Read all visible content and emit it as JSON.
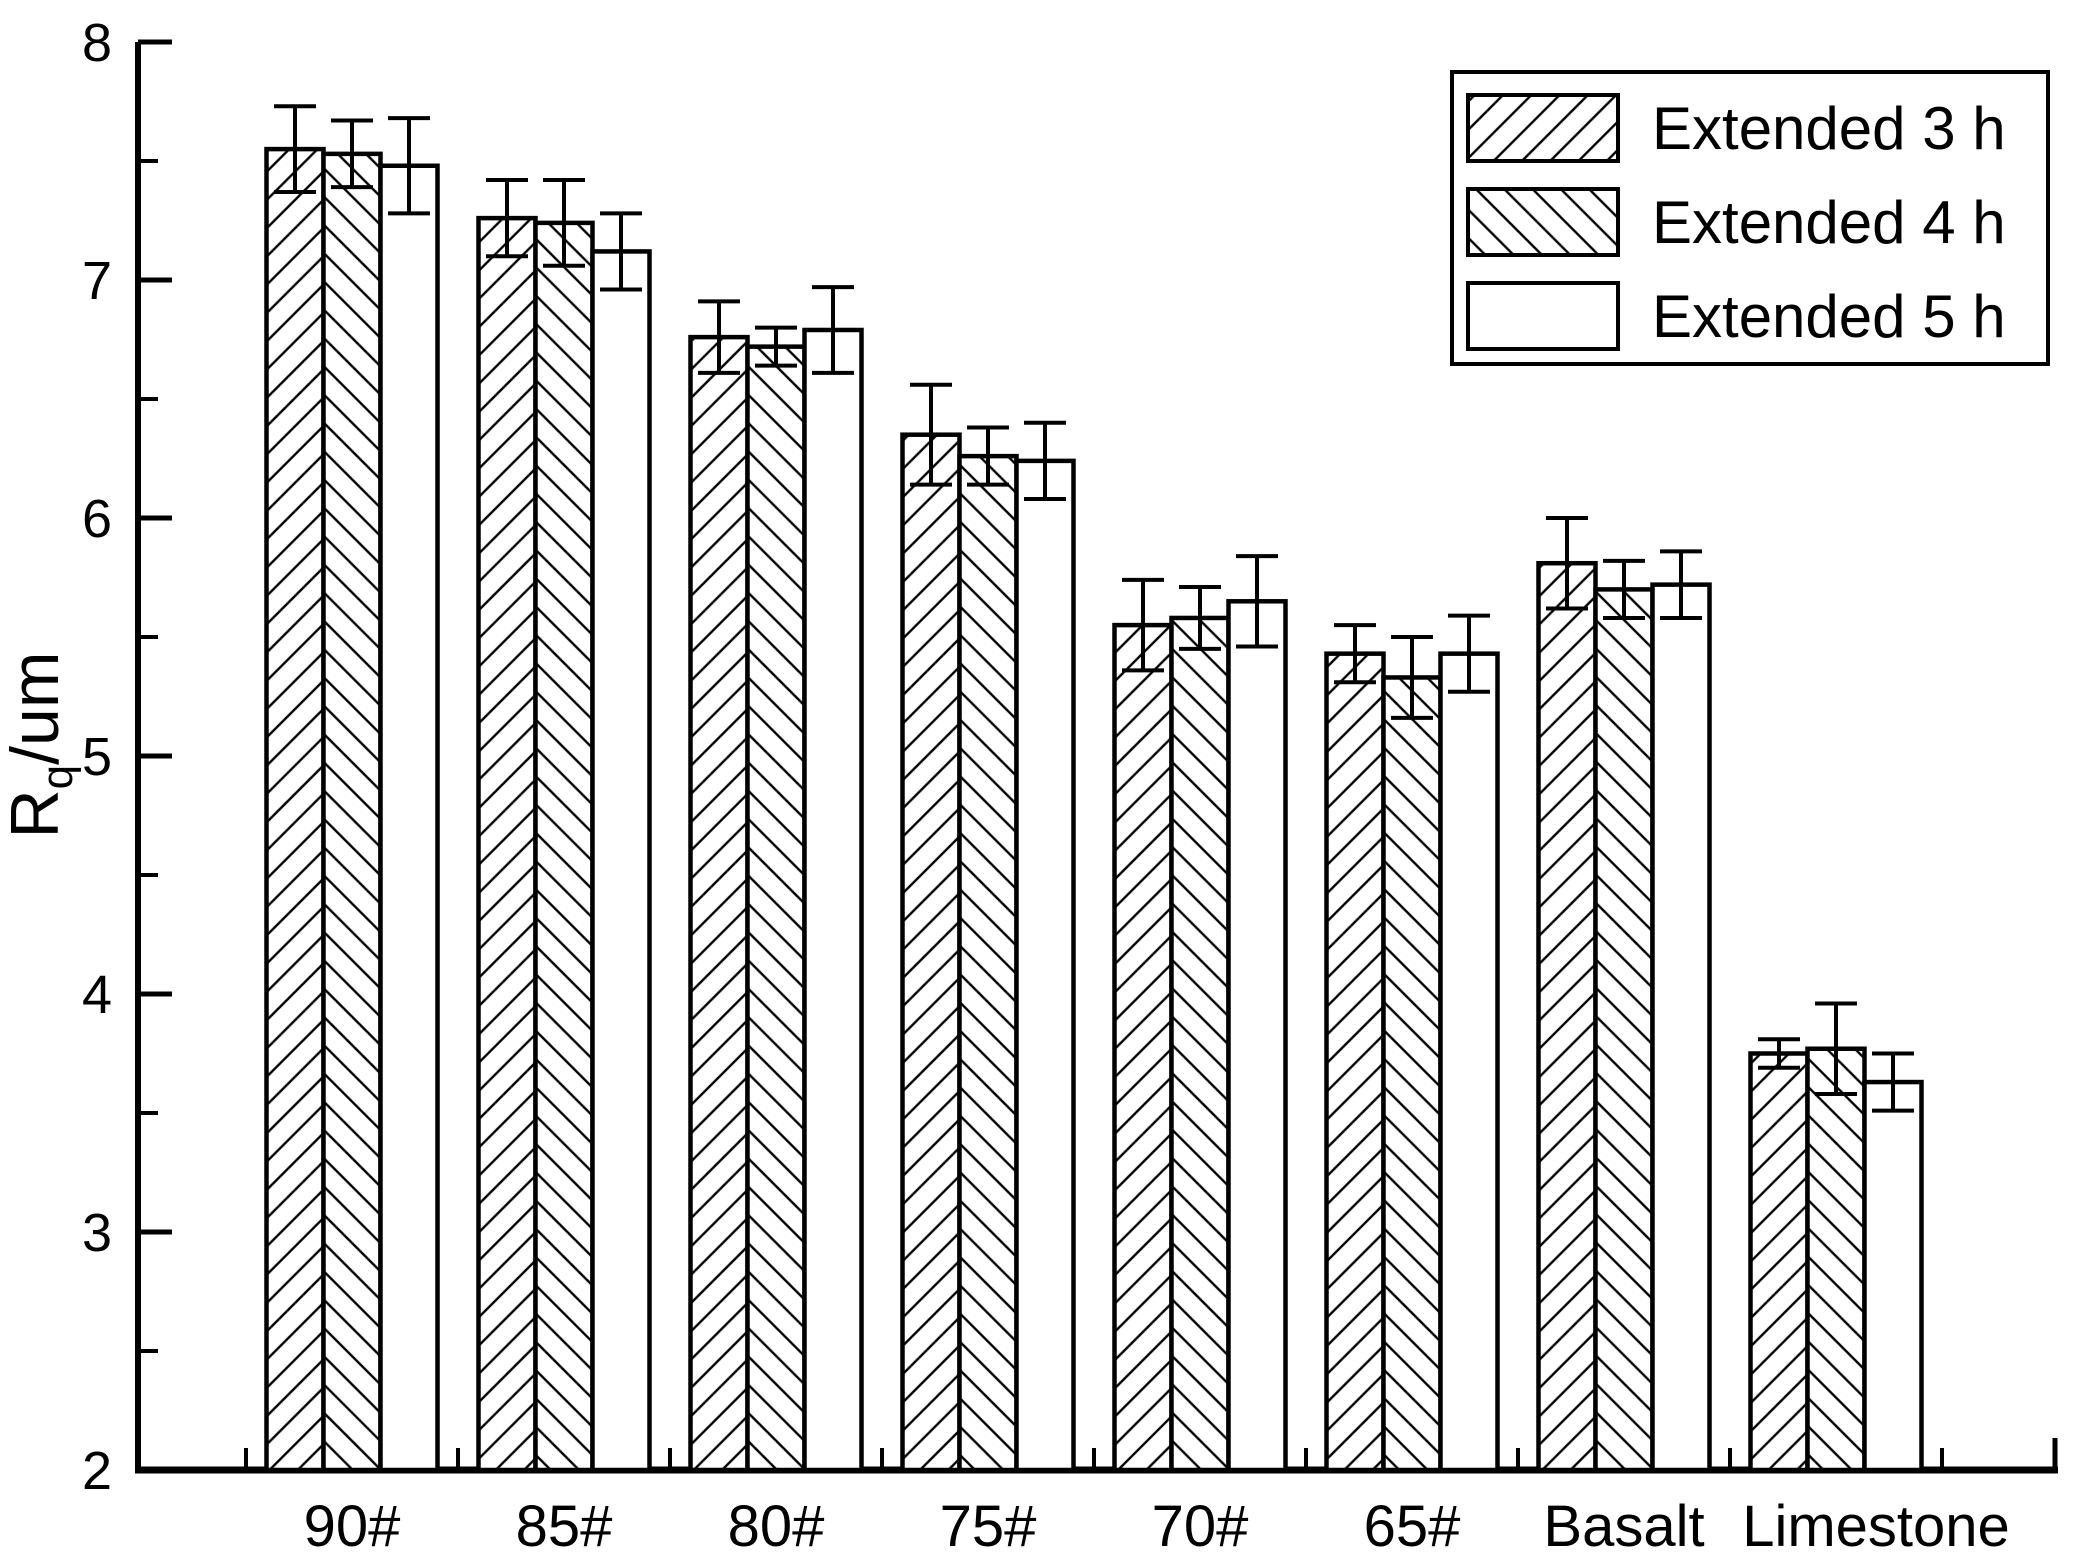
{
  "figure": {
    "background_color": "#ffffff",
    "ink_color": "#000000"
  },
  "chart_data": {
    "type": "bar",
    "title": "",
    "xlabel": "",
    "ylabel": {
      "base": "R",
      "sub": "q",
      "rest": "/um",
      "display": "Rq/um"
    },
    "ylim": [
      2,
      8
    ],
    "y_major_ticks": [
      2,
      3,
      4,
      5,
      6,
      7,
      8
    ],
    "y_minor_step": 0.5,
    "grid": false,
    "legend_position": "top-right",
    "categories": [
      "90#",
      "85#",
      "80#",
      "75#",
      "70#",
      "65#",
      "Basalt",
      "Limestone"
    ],
    "series": [
      {
        "name": "Extended 3 h",
        "hatch": "forward-diagonal",
        "fill": "#ffffff",
        "values": [
          7.55,
          7.26,
          6.76,
          6.35,
          5.55,
          5.43,
          5.81,
          3.75
        ],
        "errors": [
          0.18,
          0.16,
          0.15,
          0.21,
          0.19,
          0.12,
          0.19,
          0.06
        ]
      },
      {
        "name": "Extended 4 h",
        "hatch": "backward-diagonal",
        "fill": "#ffffff",
        "values": [
          7.53,
          7.24,
          6.72,
          6.26,
          5.58,
          5.33,
          5.7,
          3.77
        ],
        "errors": [
          0.14,
          0.18,
          0.08,
          0.12,
          0.13,
          0.17,
          0.12,
          0.19
        ]
      },
      {
        "name": "Extended 5 h",
        "hatch": "none",
        "fill": "#ffffff",
        "values": [
          7.48,
          7.12,
          6.79,
          6.24,
          5.65,
          5.43,
          5.72,
          3.63
        ],
        "errors": [
          0.2,
          0.16,
          0.18,
          0.16,
          0.19,
          0.16,
          0.14,
          0.12
        ]
      }
    ]
  }
}
